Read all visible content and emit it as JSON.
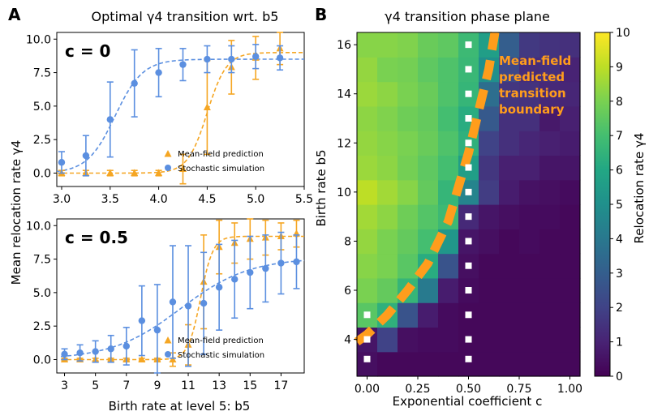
{
  "panel_labels": {
    "a": "A",
    "b": "B"
  },
  "chart_data": [
    {
      "type": "scatter",
      "title": "Optimal γ4 transition wrt. b5",
      "annotation": "c = 0",
      "xlabel": "",
      "ylabel": "Mean relocation rate γ4",
      "xlim": [
        2.95,
        5.5
      ],
      "ylim": [
        -1,
        10.5
      ],
      "xticks": [
        "3.0",
        "3.5",
        "4.0",
        "4.5",
        "5.0",
        "5.5"
      ],
      "yticks": [
        "0.0",
        "2.5",
        "5.0",
        "7.5",
        "10.0"
      ],
      "legend": [
        "Mean-field prediction",
        "Stochastic simulation"
      ],
      "series": [
        {
          "name": "Mean-field prediction",
          "color": "#f5a623",
          "x": [
            3.0,
            3.25,
            3.5,
            3.75,
            4.0,
            4.25,
            4.5,
            4.75,
            5.0,
            5.25
          ],
          "y": [
            0.0,
            0.0,
            0.0,
            0.0,
            0.0,
            0.3,
            4.9,
            7.9,
            8.6,
            9.3
          ],
          "err": [
            0.2,
            0.2,
            0.2,
            0.2,
            0.2,
            1.1,
            3.5,
            2.0,
            1.6,
            1.2
          ],
          "fit": {
            "L": 9.0,
            "x0": 4.5,
            "k": 10
          }
        },
        {
          "name": "Stochastic simulation",
          "color": "#5b8fe0",
          "x": [
            3.0,
            3.25,
            3.5,
            3.75,
            4.0,
            4.25,
            4.5,
            4.75,
            5.0,
            5.25
          ],
          "y": [
            0.8,
            1.3,
            4.0,
            6.7,
            7.5,
            8.1,
            8.5,
            8.5,
            8.7,
            8.6
          ],
          "err": [
            0.8,
            1.5,
            2.8,
            2.5,
            1.8,
            1.2,
            1.0,
            1.0,
            0.9,
            0.9
          ],
          "fit": {
            "L": 8.5,
            "x0": 3.55,
            "k": 7
          }
        }
      ]
    },
    {
      "type": "scatter",
      "title": "",
      "annotation": "c = 0.5",
      "xlabel": "Birth rate at level 5: b5",
      "ylabel": "Mean relocation rate γ4",
      "xlim": [
        2.5,
        18.5
      ],
      "ylim": [
        -1,
        10.5
      ],
      "xticks": [
        "3",
        "5",
        "7",
        "9",
        "11",
        "13",
        "15",
        "17"
      ],
      "yticks": [
        "0.0",
        "2.5",
        "5.0",
        "7.5",
        "10.0"
      ],
      "legend": [
        "Mean-field prediction",
        "Stochastic simulation"
      ],
      "series": [
        {
          "name": "Mean-field prediction",
          "color": "#f5a623",
          "x": [
            3,
            4,
            5,
            6,
            7,
            8,
            9,
            10,
            11,
            12,
            13,
            14,
            15,
            16,
            17,
            18
          ],
          "y": [
            0,
            0,
            0,
            0,
            0,
            0,
            0,
            0,
            1.1,
            5.8,
            8.4,
            8.7,
            9.0,
            9.1,
            9.2,
            9.4
          ],
          "err": [
            0.1,
            0.1,
            0.1,
            0.1,
            0.1,
            0.1,
            0.1,
            0.5,
            1.5,
            3.5,
            2.0,
            1.5,
            1.5,
            1.3,
            1.0,
            1.0
          ],
          "fit": {
            "L": 9.2,
            "x0": 11.8,
            "k": 2.5
          }
        },
        {
          "name": "Stochastic simulation",
          "color": "#5b8fe0",
          "x": [
            3,
            4,
            5,
            6,
            7,
            8,
            9,
            10,
            11,
            12,
            13,
            14,
            15,
            16,
            17,
            18
          ],
          "y": [
            0.4,
            0.5,
            0.6,
            0.8,
            1.0,
            2.9,
            2.2,
            4.3,
            4.0,
            4.2,
            5.4,
            6.0,
            6.5,
            6.8,
            7.2,
            7.3
          ],
          "err": [
            0.4,
            0.6,
            0.8,
            1.0,
            1.4,
            2.6,
            3.4,
            4.2,
            4.5,
            3.8,
            3.2,
            2.9,
            2.7,
            2.5,
            2.3,
            2.0
          ],
          "fit": {
            "L": 7.6,
            "x0": 10.5,
            "k": 0.45
          }
        }
      ]
    },
    {
      "type": "heatmap",
      "title": "γ4 transition phase plane",
      "xlabel": "Exponential coefficient c",
      "ylabel": "Birth rate b5",
      "xlim": [
        -0.05,
        1.05
      ],
      "ylim": [
        2.5,
        16.5
      ],
      "xticks": [
        "0.00",
        "0.25",
        "0.50",
        "0.75",
        "1.00"
      ],
      "yticks": [
        "4",
        "6",
        "8",
        "10",
        "12",
        "14",
        "16"
      ],
      "x": [
        0.0,
        0.1,
        0.2,
        0.3,
        0.4,
        0.5,
        0.6,
        0.7,
        0.8,
        0.9,
        1.0
      ],
      "y": [
        3,
        4,
        5,
        6,
        7,
        8,
        9,
        10,
        11,
        12,
        13,
        14,
        15,
        16
      ],
      "z": [
        [
          0.4,
          0.2,
          0.2,
          0.2,
          0.2,
          0.2,
          0.2,
          0.2,
          0.2,
          0.2,
          0.2
        ],
        [
          0.6,
          2.0,
          0.4,
          0.3,
          0.3,
          0.2,
          0.2,
          0.2,
          0.2,
          0.2,
          0.2
        ],
        [
          7.4,
          6.4,
          2.6,
          0.8,
          0.3,
          0.2,
          0.2,
          0.2,
          0.2,
          0.2,
          0.2
        ],
        [
          8.0,
          7.6,
          6.6,
          4.1,
          0.8,
          0.3,
          0.2,
          0.2,
          0.2,
          0.2,
          0.2
        ],
        [
          8.2,
          8.0,
          7.4,
          6.2,
          2.6,
          0.4,
          0.2,
          0.2,
          0.2,
          0.2,
          0.2
        ],
        [
          8.4,
          8.0,
          7.6,
          7.0,
          5.3,
          0.6,
          0.4,
          0.2,
          0.3,
          0.2,
          0.2
        ],
        [
          8.6,
          8.3,
          7.8,
          7.3,
          6.8,
          1.2,
          0.6,
          0.4,
          0.3,
          0.3,
          0.2
        ],
        [
          9.0,
          8.6,
          8.2,
          7.6,
          6.6,
          4.5,
          1.8,
          0.8,
          0.5,
          0.4,
          0.3
        ],
        [
          8.5,
          8.3,
          7.9,
          7.5,
          7.0,
          5.6,
          1.6,
          0.9,
          0.9,
          0.6,
          0.6
        ],
        [
          8.4,
          8.2,
          8.0,
          7.7,
          7.2,
          6.4,
          2.0,
          1.4,
          1.1,
          0.9,
          0.8
        ],
        [
          8.3,
          8.1,
          7.8,
          7.6,
          7.0,
          6.2,
          2.8,
          1.4,
          1.4,
          0.7,
          0.9
        ],
        [
          8.5,
          8.3,
          8.0,
          7.7,
          7.2,
          6.6,
          3.6,
          1.6,
          1.5,
          1.2,
          1.1
        ],
        [
          8.4,
          8.0,
          7.9,
          7.5,
          7.2,
          6.7,
          5.0,
          2.2,
          1.3,
          1.4,
          1.0
        ],
        [
          8.2,
          8.2,
          8.1,
          7.7,
          7.5,
          6.8,
          5.6,
          3.0,
          1.7,
          1.5,
          1.4
        ]
      ],
      "colorbar": {
        "label": "Relocation rate γ4",
        "min": 0,
        "max": 10,
        "ticks": [
          "0",
          "1",
          "2",
          "3",
          "4",
          "5",
          "6",
          "7",
          "8",
          "9",
          "10"
        ]
      },
      "annotation": [
        "Mean-field",
        "predicted",
        "transition",
        "boundary"
      ],
      "boundary": {
        "x": [
          -0.05,
          0.0,
          0.1,
          0.2,
          0.3,
          0.4,
          0.45,
          0.5,
          0.55,
          0.6,
          0.63
        ],
        "y": [
          3.9,
          4.2,
          5.0,
          6.0,
          7.1,
          8.8,
          10.2,
          11.6,
          13.3,
          15.0,
          16.5
        ]
      },
      "markers": {
        "c0_b5": [
          3.2,
          4.0,
          5.0
        ],
        "c05_b5": [
          3.2,
          4.0,
          5.0,
          6.0,
          7.0,
          8.0,
          9.0,
          10.0,
          11.0,
          12.0,
          13.0,
          14.0,
          15.0,
          16.0
        ]
      }
    }
  ]
}
